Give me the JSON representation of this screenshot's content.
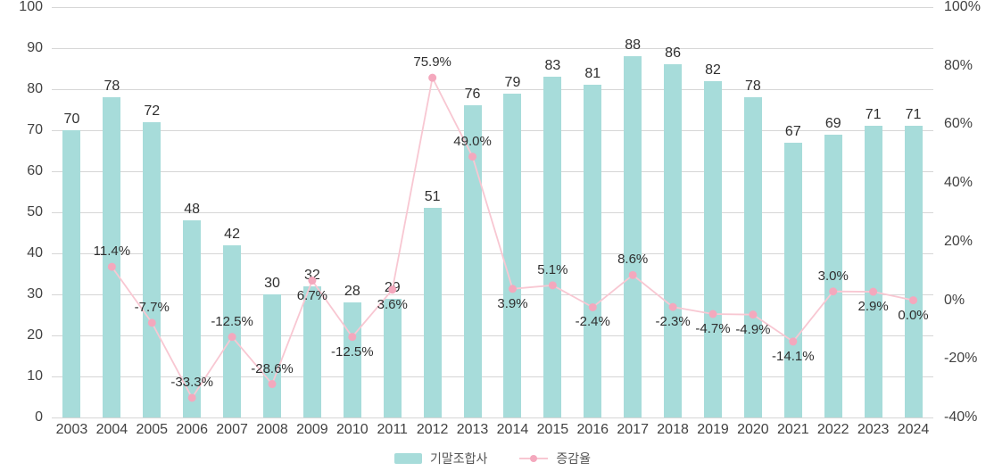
{
  "chart_data": {
    "type": "bar",
    "categories": [
      "2003",
      "2004",
      "2005",
      "2006",
      "2007",
      "2008",
      "2009",
      "2010",
      "2011",
      "2012",
      "2013",
      "2014",
      "2015",
      "2016",
      "2017",
      "2018",
      "2019",
      "2020",
      "2021",
      "2022",
      "2023",
      "2024"
    ],
    "series": [
      {
        "name": "기말조합사",
        "type": "bar",
        "axis": "left",
        "color": "#a7dcda",
        "values": [
          70,
          78,
          72,
          48,
          42,
          30,
          32,
          28,
          29,
          51,
          76,
          79,
          83,
          81,
          88,
          86,
          82,
          78,
          67,
          69,
          71,
          71
        ],
        "value_labels": [
          "70",
          "78",
          "72",
          "48",
          "42",
          "30",
          "32",
          "28",
          "29",
          "51",
          "76",
          "79",
          "83",
          "81",
          "88",
          "86",
          "82",
          "78",
          "67",
          "69",
          "71",
          "71"
        ]
      },
      {
        "name": "증감율",
        "type": "line",
        "axis": "right",
        "color": "#f8c7d2",
        "marker_color": "#f4a8bd",
        "values": [
          null,
          11.4,
          -7.7,
          -33.3,
          -12.5,
          -28.6,
          6.7,
          -12.5,
          3.6,
          75.9,
          49.0,
          3.9,
          5.1,
          -2.4,
          8.6,
          -2.3,
          -4.7,
          -4.9,
          -14.1,
          3.0,
          2.9,
          0.0
        ],
        "value_labels": [
          "",
          "11.4%",
          "-7.7%",
          "-33.3%",
          "-12.5%",
          "-28.6%",
          "6.7%",
          "-12.5%",
          "3.6%",
          "75.9%",
          "49.0%",
          "3.9%",
          "5.1%",
          "-2.4%",
          "8.6%",
          "-2.3%",
          "-4.7%",
          "-4.9%",
          "-14.1%",
          "3.0%",
          "2.9%",
          "0.0%"
        ],
        "label_side": [
          "",
          "above",
          "above",
          "above",
          "above",
          "above",
          "below",
          "below",
          "below",
          "above",
          "above",
          "below",
          "above",
          "below",
          "above",
          "below",
          "below",
          "below",
          "below",
          "above",
          "below",
          "below"
        ]
      }
    ],
    "left_axis": {
      "min": 0,
      "max": 100,
      "step": 10,
      "ticks": [
        0,
        10,
        20,
        30,
        40,
        50,
        60,
        70,
        80,
        90,
        100
      ]
    },
    "right_axis": {
      "min": -40,
      "max": 100,
      "step": 20,
      "ticks": [
        {
          "value": 100,
          "label": "100%"
        },
        {
          "value": 80,
          "label": "80%"
        },
        {
          "value": 60,
          "label": "60%"
        },
        {
          "value": 40,
          "label": "40%"
        },
        {
          "value": 20,
          "label": "20%"
        },
        {
          "value": 0,
          "label": "0%"
        },
        {
          "value": -20,
          "label": "-20%"
        },
        {
          "value": -40,
          "label": "-40%"
        }
      ]
    },
    "grid": true,
    "title": "",
    "legend_position": "bottom",
    "grid_color": "#d6d6d6"
  }
}
